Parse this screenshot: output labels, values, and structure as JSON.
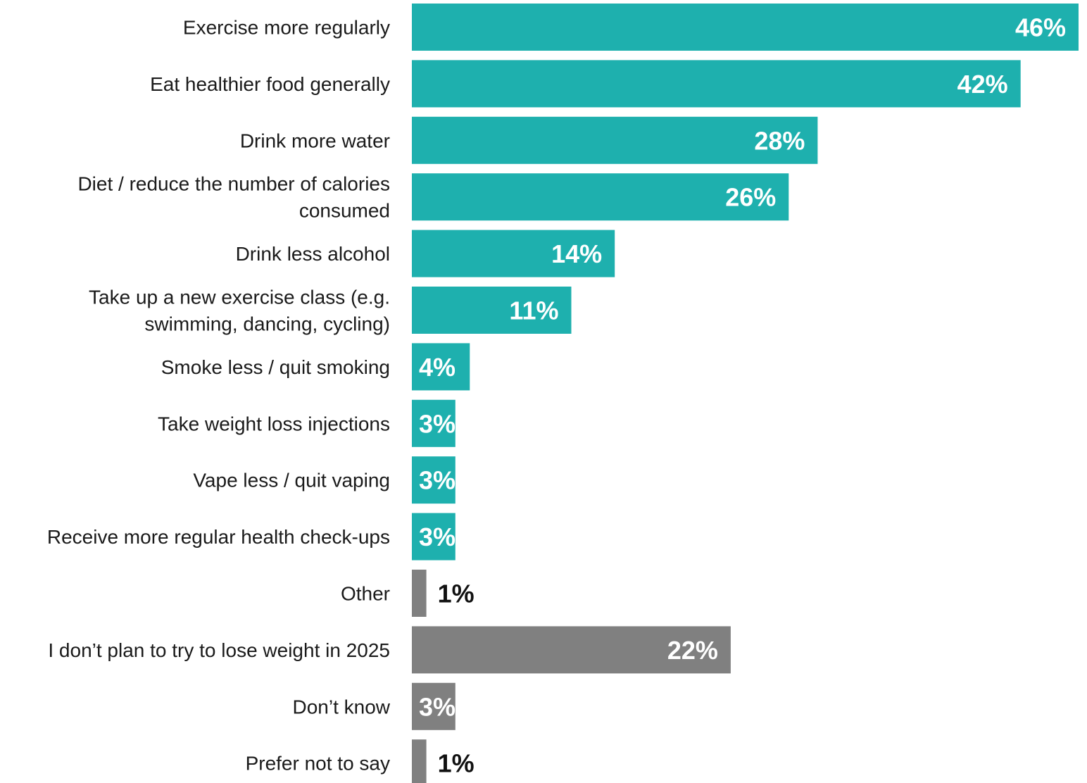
{
  "chart_data": {
    "type": "bar",
    "orientation": "horizontal",
    "categories": [
      "Exercise more regularly",
      "Eat healthier food generally",
      "Drink more water",
      "Diet / reduce the number of calories consumed",
      "Drink less alcohol",
      "Take up a new exercise class (e.g. swimming, dancing, cycling)",
      "Smoke less / quit smoking",
      "Take weight loss injections",
      "Vape less / quit vaping",
      "Receive more regular health check-ups",
      "Other",
      "I don’t plan to try to lose weight in 2025",
      "Don’t know",
      "Prefer not to say"
    ],
    "label_lines": [
      [
        "Exercise more regularly"
      ],
      [
        "Eat healthier food generally"
      ],
      [
        "Drink more water"
      ],
      [
        "Diet / reduce the number of calories",
        "consumed"
      ],
      [
        "Drink less alcohol"
      ],
      [
        "Take up a new exercise class (e.g.",
        "swimming, dancing, cycling)"
      ],
      [
        "Smoke less / quit smoking"
      ],
      [
        "Take weight loss injections"
      ],
      [
        "Vape less / quit vaping"
      ],
      [
        "Receive more regular health check-ups"
      ],
      [
        "Other"
      ],
      [
        "I don’t plan to try to lose weight in 2025"
      ],
      [
        "Don’t know"
      ],
      [
        "Prefer not to say"
      ]
    ],
    "values": [
      46,
      42,
      28,
      26,
      14,
      11,
      4,
      3,
      3,
      3,
      1,
      22,
      3,
      1
    ],
    "value_labels": [
      "46%",
      "42%",
      "28%",
      "26%",
      "14%",
      "11%",
      "4%",
      "3%",
      "3%",
      "3%",
      "1%",
      "22%",
      "3%",
      "1%"
    ],
    "bar_colors": [
      "#1eb0ae",
      "#1eb0ae",
      "#1eb0ae",
      "#1eb0ae",
      "#1eb0ae",
      "#1eb0ae",
      "#1eb0ae",
      "#1eb0ae",
      "#1eb0ae",
      "#1eb0ae",
      "#808080",
      "#808080",
      "#808080",
      "#808080"
    ],
    "label_inside_color": "#ffffff",
    "label_outside_color": "#111111",
    "xlim": [
      0,
      46
    ],
    "grid": false,
    "legend": "none",
    "title": "",
    "xlabel": "",
    "ylabel": ""
  }
}
